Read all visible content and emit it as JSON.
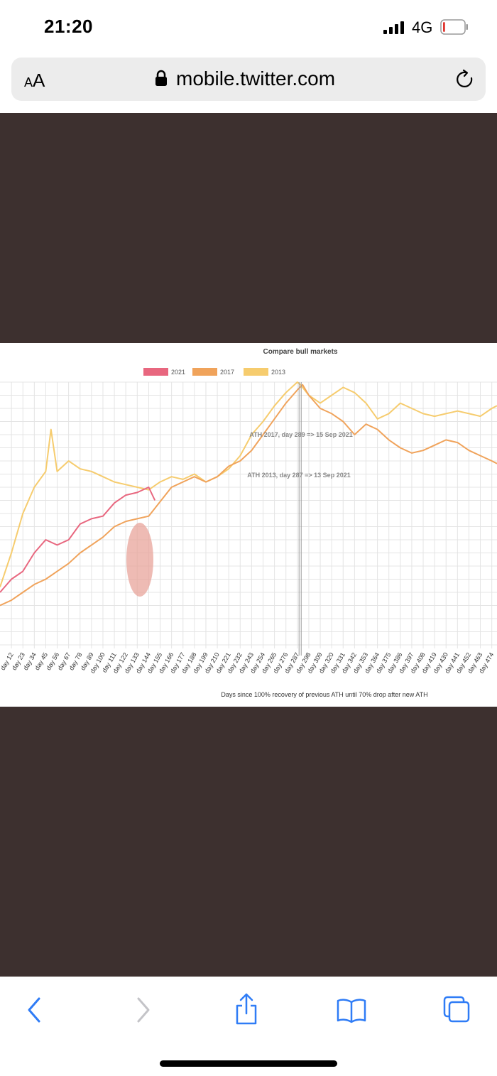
{
  "status_bar": {
    "time": "21:20",
    "network": "4G",
    "battery_level": 0.1,
    "icons": [
      "signal-bars-icon",
      "battery-icon"
    ]
  },
  "address_bar": {
    "text_size_small": "A",
    "text_size_big": "A",
    "url": "mobile.twitter.com",
    "icons": [
      "lock-icon",
      "reload-icon"
    ]
  },
  "chart": {
    "title": "Compare bull markets",
    "xlabel": "Days since 100% recovery of previous ATH until 70% drop after new ATH",
    "annotations": [
      "ATH 2017, day 289 => 15 Sep 2021",
      "ATH 2013, day 287 => 13 Sep 2021"
    ],
    "highlight_color": "#e8a49b"
  },
  "chart_data": {
    "type": "line",
    "title": "Compare bull markets",
    "xlabel": "Days since 100% recovery of previous ATH until 70% drop after new ATH",
    "ylabel": "",
    "legend": "top-center",
    "grid": true,
    "x_tick_labels": [
      "day 12",
      "day 23",
      "day 34",
      "day 45",
      "day 56",
      "day 67",
      "day 78",
      "day 89",
      "day 100",
      "day 111",
      "day 122",
      "day 133",
      "day 144",
      "day 155",
      "day 166",
      "day 177",
      "day 188",
      "day 199",
      "day 210",
      "day 221",
      "day 232",
      "day 243",
      "day 254",
      "day 265",
      "day 276",
      "day 287",
      "day 298",
      "day 309",
      "day 320",
      "day 331",
      "day 342",
      "day 353",
      "day 364",
      "day 375",
      "day 386",
      "day 397",
      "day 408",
      "day 419",
      "day 430",
      "day 441",
      "day 452",
      "day 463",
      "day 474"
    ],
    "x_range": [
      1,
      479
    ],
    "y_range": [
      0,
      100
    ],
    "series": [
      {
        "name": "2021",
        "color": "#e8677f",
        "x": [
          1,
          12,
          23,
          34,
          45,
          56,
          67,
          78,
          89,
          100,
          111,
          122,
          133,
          144,
          150
        ],
        "y": [
          20,
          25,
          28,
          35,
          40,
          38,
          40,
          46,
          48,
          49,
          54,
          57,
          58,
          60,
          55
        ]
      },
      {
        "name": "2017",
        "color": "#f0a35b",
        "x": [
          1,
          12,
          23,
          34,
          45,
          56,
          67,
          78,
          89,
          100,
          111,
          122,
          133,
          144,
          150,
          166,
          177,
          188,
          199,
          210,
          221,
          232,
          243,
          254,
          265,
          276,
          287,
          292,
          298,
          309,
          320,
          331,
          342,
          353,
          364,
          375,
          386,
          397,
          408,
          419,
          430,
          441,
          452,
          463,
          474,
          479
        ],
        "y": [
          15,
          17,
          20,
          23,
          25,
          28,
          31,
          35,
          38,
          41,
          45,
          47,
          48,
          49,
          52,
          60,
          62,
          64,
          62,
          64,
          68,
          70,
          74,
          80,
          86,
          92,
          97,
          99,
          95,
          90,
          88,
          85,
          80,
          84,
          82,
          78,
          75,
          73,
          74,
          76,
          78,
          77,
          74,
          72,
          70,
          69
        ]
      },
      {
        "name": "2013",
        "color": "#f6cc6e",
        "x": [
          1,
          12,
          23,
          34,
          45,
          50,
          56,
          67,
          78,
          89,
          100,
          111,
          122,
          133,
          144,
          155,
          166,
          177,
          188,
          199,
          210,
          221,
          232,
          243,
          254,
          265,
          276,
          287,
          290,
          298,
          309,
          320,
          331,
          342,
          353,
          364,
          375,
          386,
          397,
          408,
          419,
          430,
          441,
          452,
          463,
          474,
          479
        ],
        "y": [
          22,
          35,
          50,
          60,
          66,
          82,
          66,
          70,
          67,
          66,
          64,
          62,
          61,
          60,
          59,
          62,
          64,
          63,
          65,
          62,
          64,
          67,
          72,
          80,
          85,
          91,
          96,
          100,
          99,
          95,
          92,
          95,
          98,
          96,
          92,
          86,
          88,
          92,
          90,
          88,
          87,
          88,
          89,
          88,
          87,
          90,
          91
        ]
      }
    ]
  },
  "toolbar": {
    "icons": [
      "back-icon",
      "forward-icon",
      "share-icon",
      "bookmarks-icon",
      "tabs-icon"
    ]
  }
}
